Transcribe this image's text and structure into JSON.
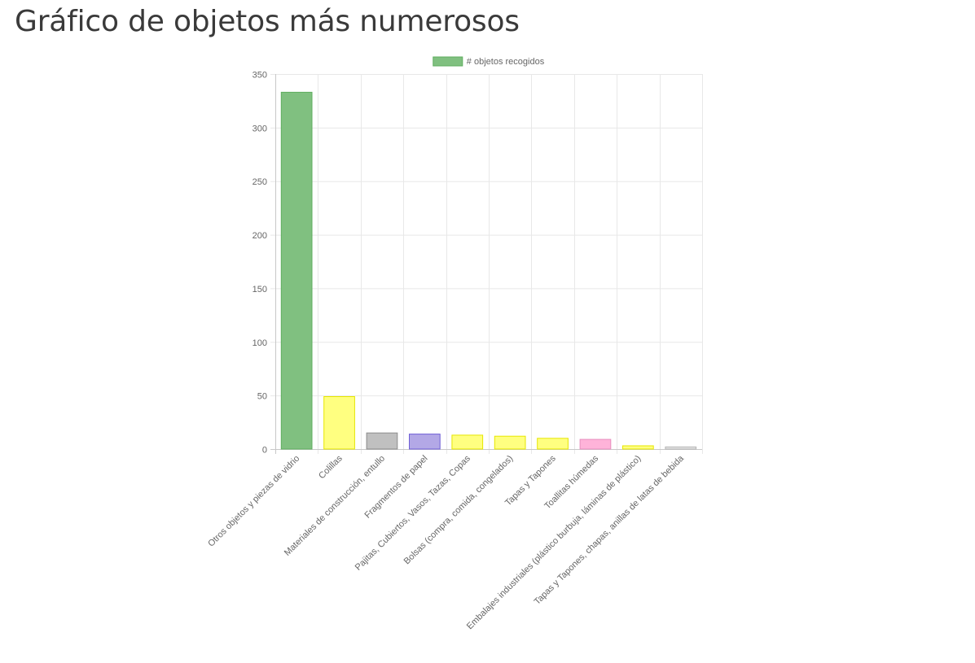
{
  "page": {
    "title": "Gráfico de objetos más numerosos"
  },
  "chart_data": {
    "type": "bar",
    "legend": {
      "position": "top",
      "label": "# objetos recogidos"
    },
    "categories": [
      "Otros objetos y piezas de vidrio",
      "Colillas",
      "Materiales de construcción, entullo",
      "Fragmentos de papel",
      "Pajitas, Cubiertos, Vasos, Tazas, Copas",
      "Bolsas (compra, comida, congelados)",
      "Tapas y Tapones",
      "Toallitas húmedas",
      "Embalajes industriales (plástico burbuja, láminas de plástico)",
      "Tapas y Tapones, chapas, anillas de latas de bebida"
    ],
    "series": [
      {
        "name": "# objetos recogidos",
        "values": [
          333,
          49,
          15,
          14,
          13,
          12,
          10,
          9,
          3,
          2
        ]
      }
    ],
    "colors": {
      "fill": [
        "#80c080",
        "#ffff80",
        "#c0c0c0",
        "#b3a8e6",
        "#ffff80",
        "#ffff80",
        "#ffff80",
        "#ffb3d9",
        "#ffff80",
        "#e6e6e6"
      ],
      "border": [
        "#5fae5f",
        "#e6e600",
        "#8c8c8c",
        "#6f5fd6",
        "#e6e600",
        "#e6e600",
        "#e6e600",
        "#e68fbf",
        "#e6e600",
        "#b3b3b3"
      ],
      "legend_fill": "#80c080",
      "grid": "#e8e8e8",
      "axis": "#c8c8c8",
      "text": "#666666"
    },
    "ylim": [
      0,
      350
    ],
    "yticks": [
      0,
      50,
      100,
      150,
      200,
      250,
      300,
      350
    ],
    "grid": true,
    "xlabel": "",
    "ylabel": ""
  }
}
